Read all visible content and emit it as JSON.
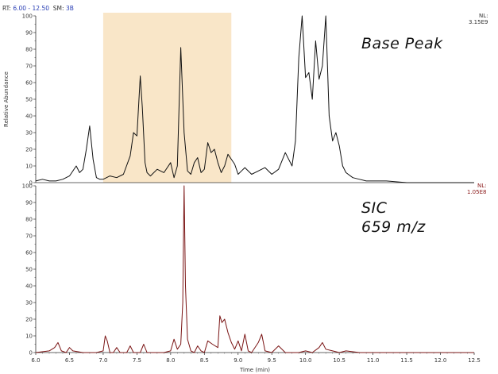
{
  "header": {
    "rt_label": "RT:",
    "rt_value": "6.00 - 12.50",
    "sm_label": "SM:",
    "sm_value": "3B"
  },
  "colors": {
    "highlight": "#f9e6c8",
    "base_line": "#111111",
    "sic_line": "#7a1414",
    "axis": "#333333"
  },
  "chart_data": [
    {
      "type": "line",
      "title": "Base Peak",
      "nl_label": "NL:",
      "nl_value": "3.15E9",
      "ylabel": "Relative Abundance",
      "xlabel": "",
      "xlim": [
        6.0,
        12.5
      ],
      "ylim": [
        0,
        100
      ],
      "yticks": [
        0,
        10,
        20,
        30,
        40,
        50,
        60,
        70,
        80,
        90,
        100
      ],
      "highlight_range": [
        7.0,
        8.9
      ],
      "series": [
        {
          "x": [
            6.0,
            6.1,
            6.2,
            6.3,
            6.4,
            6.5,
            6.6,
            6.65,
            6.7,
            6.75,
            6.8,
            6.85,
            6.9,
            6.95,
            7.0,
            7.1,
            7.2,
            7.3,
            7.4,
            7.45,
            7.5,
            7.55,
            7.58,
            7.62,
            7.65,
            7.7,
            7.8,
            7.9,
            8.0,
            8.05,
            8.1,
            8.15,
            8.2,
            8.25,
            8.3,
            8.35,
            8.4,
            8.45,
            8.5,
            8.55,
            8.6,
            8.65,
            8.7,
            8.75,
            8.8,
            8.85,
            8.9,
            8.95,
            9.0,
            9.05,
            9.1,
            9.2,
            9.3,
            9.4,
            9.5,
            9.6,
            9.7,
            9.8,
            9.85,
            9.9,
            9.95,
            10.0,
            10.05,
            10.1,
            10.15,
            10.2,
            10.25,
            10.3,
            10.35,
            10.4,
            10.45,
            10.5,
            10.55,
            10.6,
            10.7,
            10.8,
            10.9,
            11.0,
            11.2,
            11.5,
            12.0,
            12.5
          ],
          "y": [
            1,
            2,
            1,
            1,
            2,
            4,
            10,
            6,
            8,
            20,
            34,
            14,
            3,
            2,
            2,
            4,
            3,
            5,
            16,
            30,
            28,
            64,
            45,
            12,
            6,
            4,
            8,
            6,
            12,
            3,
            10,
            81,
            30,
            7,
            5,
            12,
            15,
            6,
            8,
            24,
            18,
            20,
            12,
            6,
            10,
            17,
            14,
            11,
            5,
            7,
            9,
            5,
            7,
            9,
            5,
            8,
            18,
            10,
            25,
            75,
            100,
            63,
            66,
            50,
            85,
            62,
            70,
            100,
            40,
            25,
            30,
            22,
            10,
            6,
            3,
            2,
            1,
            1,
            1,
            0,
            0,
            0
          ],
          "color": "#111111"
        }
      ]
    },
    {
      "type": "line",
      "title": "SIC",
      "subtitle": "659 m/z",
      "nl_label": "NL:",
      "nl_value": "1.05E8",
      "ylabel": "",
      "xlabel": "Time (min)",
      "xlim": [
        6.0,
        12.5
      ],
      "ylim": [
        0,
        100
      ],
      "yticks": [
        0,
        10,
        20,
        30,
        40,
        50,
        60,
        70,
        80,
        90,
        100
      ],
      "xticks": [
        6.0,
        6.5,
        7.0,
        7.5,
        8.0,
        8.5,
        9.0,
        9.5,
        10.0,
        10.5,
        11.0,
        11.5,
        12.0,
        12.5
      ],
      "xtick_labels": [
        "6.0",
        "6.5",
        "7.0",
        "7.5",
        "8.0",
        "8.5",
        "9.0",
        "9.5",
        "10.0",
        "10.5",
        "11.0",
        "11.5",
        "12.0",
        "12.5"
      ],
      "series": [
        {
          "x": [
            6.0,
            6.2,
            6.28,
            6.33,
            6.38,
            6.45,
            6.5,
            6.55,
            6.7,
            6.9,
            7.0,
            7.03,
            7.06,
            7.1,
            7.15,
            7.2,
            7.25,
            7.35,
            7.4,
            7.45,
            7.55,
            7.6,
            7.65,
            7.75,
            7.9,
            8.0,
            8.05,
            8.1,
            8.15,
            8.18,
            8.2,
            8.22,
            8.25,
            8.3,
            8.35,
            8.4,
            8.45,
            8.5,
            8.55,
            8.62,
            8.7,
            8.73,
            8.76,
            8.8,
            8.85,
            8.9,
            8.95,
            9.0,
            9.05,
            9.1,
            9.15,
            9.2,
            9.3,
            9.35,
            9.4,
            9.5,
            9.6,
            9.7,
            9.8,
            9.9,
            10.0,
            10.1,
            10.2,
            10.25,
            10.3,
            10.4,
            10.5,
            10.6,
            10.8,
            11.0,
            11.5,
            12.0,
            12.5
          ],
          "y": [
            0,
            1,
            3,
            6,
            1,
            0,
            3,
            1,
            0,
            0,
            1,
            10,
            7,
            0,
            0,
            3,
            0,
            0,
            4,
            0,
            0,
            5,
            0,
            0,
            0,
            1,
            8,
            2,
            5,
            30,
            100,
            40,
            8,
            1,
            0,
            4,
            1,
            0,
            7,
            5,
            3,
            22,
            18,
            20,
            12,
            6,
            2,
            7,
            1,
            11,
            1,
            0,
            6,
            11,
            1,
            0,
            4,
            0,
            0,
            0,
            1,
            0,
            3,
            6,
            2,
            1,
            0,
            1,
            0,
            0,
            0,
            0,
            0
          ],
          "color": "#7a1414"
        }
      ]
    }
  ]
}
